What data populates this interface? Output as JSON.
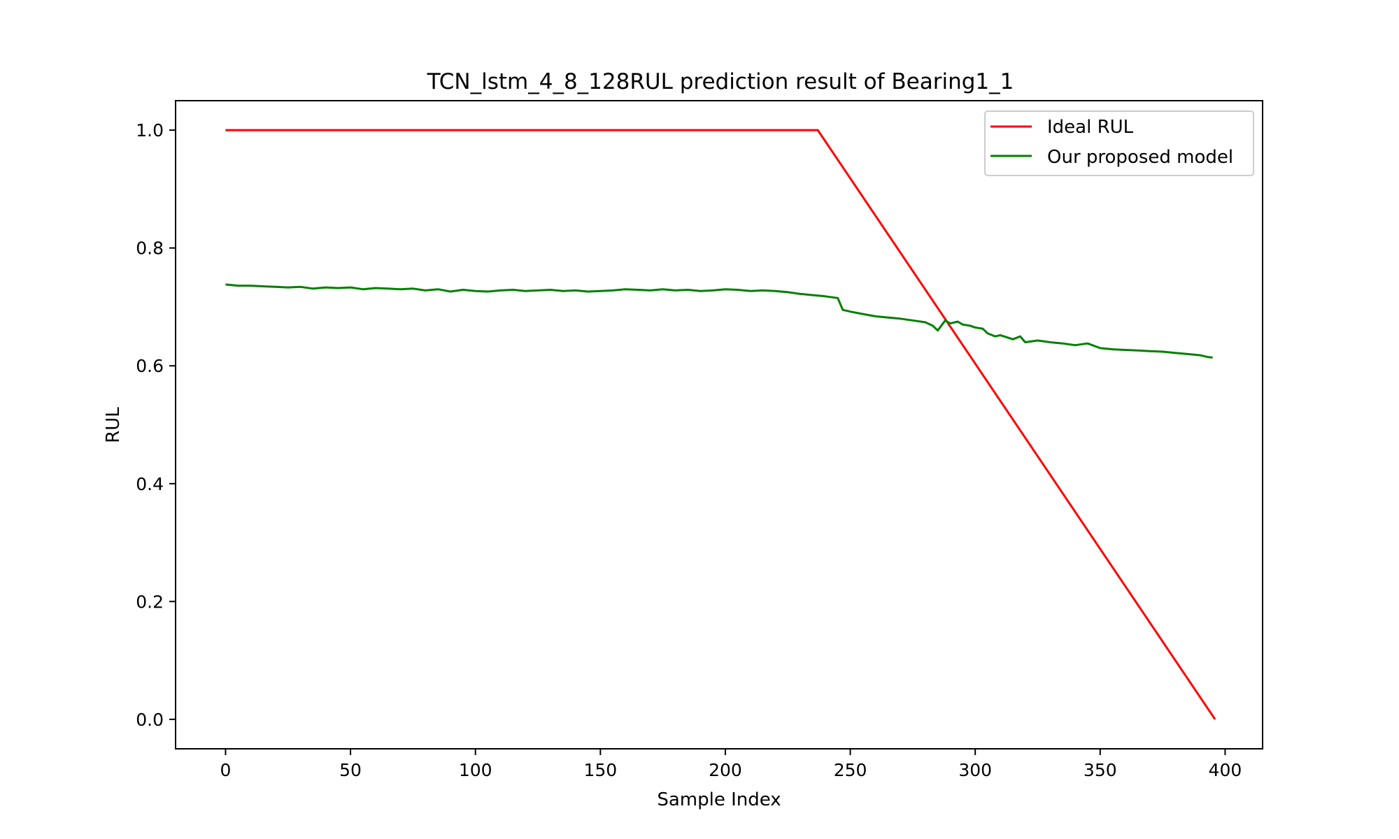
{
  "chart_data": {
    "type": "line",
    "title": "TCN_lstm_4_8_128RUL prediction result of Bearing1_1",
    "xlabel": "Sample Index",
    "ylabel": "RUL",
    "xlim": [
      -20,
      415
    ],
    "ylim": [
      -0.05,
      1.05
    ],
    "xticks": [
      0,
      50,
      100,
      150,
      200,
      250,
      300,
      350,
      400
    ],
    "yticks": [
      0.0,
      0.2,
      0.4,
      0.6,
      0.8,
      1.0
    ],
    "xtick_labels": [
      "0",
      "50",
      "100",
      "150",
      "200",
      "250",
      "300",
      "350",
      "400"
    ],
    "ytick_labels": [
      "0.0",
      "0.2",
      "0.4",
      "0.6",
      "0.8",
      "1.0"
    ],
    "grid": false,
    "legend_position": "top-right",
    "series": [
      {
        "name": "Ideal RUL",
        "color": "#ff0000",
        "x": [
          0,
          237,
          396
        ],
        "y": [
          1.0,
          1.0,
          0.0
        ]
      },
      {
        "name": "Our proposed model",
        "color": "#008000",
        "x": [
          0,
          5,
          10,
          15,
          20,
          25,
          30,
          35,
          40,
          45,
          50,
          55,
          60,
          65,
          70,
          75,
          80,
          85,
          90,
          95,
          100,
          105,
          110,
          115,
          120,
          125,
          130,
          135,
          140,
          145,
          150,
          155,
          160,
          165,
          170,
          175,
          180,
          185,
          190,
          195,
          200,
          205,
          210,
          215,
          220,
          225,
          230,
          235,
          240,
          245,
          247,
          250,
          255,
          260,
          265,
          270,
          275,
          280,
          283,
          285,
          288,
          290,
          293,
          295,
          298,
          300,
          303,
          305,
          308,
          310,
          313,
          315,
          318,
          320,
          325,
          330,
          335,
          340,
          345,
          350,
          355,
          360,
          365,
          370,
          375,
          380,
          385,
          390,
          393,
          395
        ],
        "y": [
          0.738,
          0.736,
          0.736,
          0.735,
          0.734,
          0.733,
          0.734,
          0.731,
          0.733,
          0.732,
          0.733,
          0.73,
          0.732,
          0.731,
          0.73,
          0.731,
          0.728,
          0.73,
          0.726,
          0.729,
          0.727,
          0.726,
          0.728,
          0.729,
          0.727,
          0.728,
          0.729,
          0.727,
          0.728,
          0.726,
          0.727,
          0.728,
          0.73,
          0.729,
          0.728,
          0.73,
          0.728,
          0.729,
          0.727,
          0.728,
          0.73,
          0.729,
          0.727,
          0.728,
          0.727,
          0.725,
          0.722,
          0.72,
          0.718,
          0.715,
          0.695,
          0.692,
          0.688,
          0.684,
          0.682,
          0.68,
          0.677,
          0.674,
          0.668,
          0.66,
          0.677,
          0.672,
          0.675,
          0.67,
          0.668,
          0.665,
          0.663,
          0.655,
          0.65,
          0.652,
          0.648,
          0.645,
          0.65,
          0.64,
          0.643,
          0.64,
          0.638,
          0.635,
          0.638,
          0.63,
          0.628,
          0.627,
          0.626,
          0.625,
          0.624,
          0.622,
          0.62,
          0.618,
          0.615,
          0.614
        ]
      }
    ]
  }
}
